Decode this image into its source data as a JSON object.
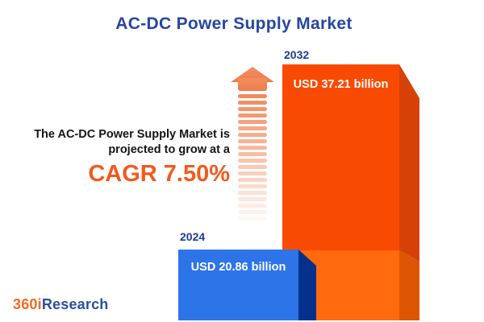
{
  "title": "AC-DC Power Supply Market",
  "annotation": {
    "line1": "The AC-DC Power Supply Market is",
    "line2": "projected to grow at a",
    "cagr": "CAGR 7.50%"
  },
  "bars": [
    {
      "year": "2024",
      "value_label": "USD 20.86 billion"
    },
    {
      "year": "2032",
      "value_label": "USD 37.21 billion"
    }
  ],
  "logo": {
    "part1": "360i",
    "part2": "Research"
  },
  "arrow": {
    "stripe_count": 20
  },
  "colors": {
    "title_blue": "#2645A3",
    "year_label_blue": "#1C3A9A",
    "cagr_orange": "#F2591D",
    "annotation_text": "#141414",
    "bar2032_front_top": "#F94A03",
    "bar2032_front_bottom": "#FE6A0D",
    "bar2032_side_top": "#D64107",
    "bar2032_side_bottom": "#DE5504",
    "bar2024_front": "#2E74E9",
    "bar2024_side": "#05318C",
    "arrow_head_top": "#F29060",
    "arrow_head_bottom": "#EF7A4C",
    "arrow_stripe": "#F08454",
    "logo_orange": "#F26A21",
    "logo_blue": "#2B4EA2"
  },
  "chart_data": {
    "type": "bar",
    "categories": [
      "2024",
      "2032"
    ],
    "values": [
      20.86,
      37.21
    ],
    "unit": "USD billion",
    "series_labels": [
      "USD 20.86 billion",
      "USD 37.21 billion"
    ],
    "title": "AC-DC Power Supply Market",
    "annotation": "The AC-DC Power Supply Market is projected to grow at a CAGR 7.50%",
    "cagr_percent": 7.5,
    "legend": "none",
    "grid": false,
    "axis_labels": "none"
  }
}
